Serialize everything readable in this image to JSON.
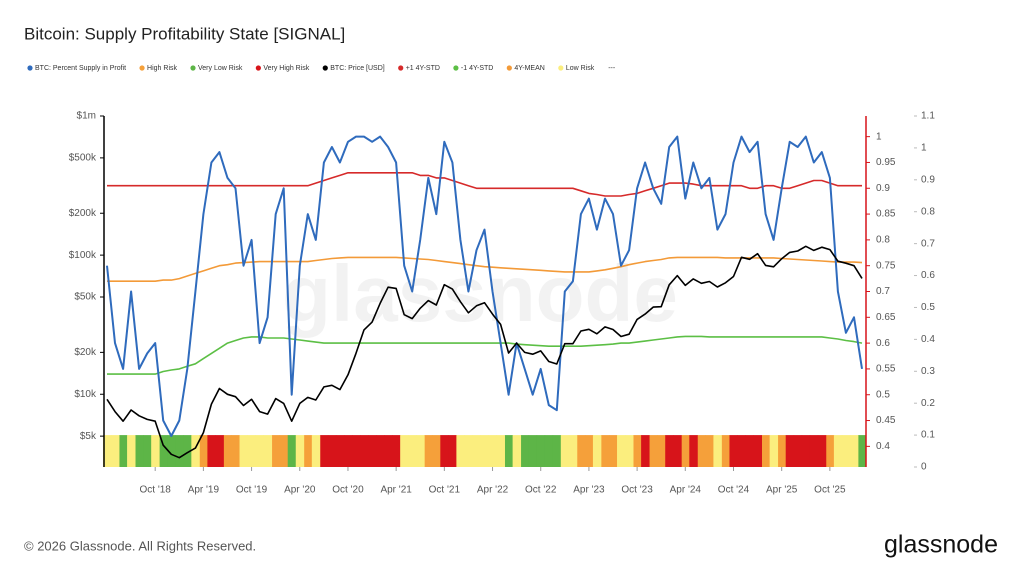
{
  "chart_data": {
    "type": "line",
    "title": "Bitcoin: Supply Profitability State [SIGNAL]",
    "ylog": true,
    "grid": false,
    "legend": "top-left",
    "legend_extra": "---",
    "x": [
      "2018-04",
      "2018-05",
      "2018-06",
      "2018-07",
      "2018-08",
      "2018-09",
      "2018-10",
      "2018-11",
      "2018-12",
      "2019-01",
      "2019-02",
      "2019-03",
      "2019-04",
      "2019-05",
      "2019-06",
      "2019-07",
      "2019-08",
      "2019-09",
      "2019-10",
      "2019-11",
      "2019-12",
      "2020-01",
      "2020-02",
      "2020-03",
      "2020-04",
      "2020-05",
      "2020-06",
      "2020-07",
      "2020-08",
      "2020-09",
      "2020-10",
      "2020-11",
      "2020-12",
      "2021-01",
      "2021-02",
      "2021-03",
      "2021-04",
      "2021-05",
      "2021-06",
      "2021-07",
      "2021-08",
      "2021-09",
      "2021-10",
      "2021-11",
      "2021-12",
      "2022-01",
      "2022-02",
      "2022-03",
      "2022-04",
      "2022-05",
      "2022-06",
      "2022-07",
      "2022-08",
      "2022-09",
      "2022-10",
      "2022-11",
      "2022-12",
      "2023-01",
      "2023-02",
      "2023-03",
      "2023-04",
      "2023-05",
      "2023-06",
      "2023-07",
      "2023-08",
      "2023-09",
      "2023-10",
      "2023-11",
      "2023-12",
      "2024-01",
      "2024-02",
      "2024-03",
      "2024-04",
      "2024-05",
      "2024-06",
      "2024-07",
      "2024-08",
      "2024-09",
      "2024-10",
      "2024-11",
      "2024-12",
      "2025-01",
      "2025-02",
      "2025-03",
      "2025-04",
      "2025-05",
      "2025-06",
      "2025-07",
      "2025-08",
      "2025-09",
      "2025-10",
      "2025-11",
      "2025-12",
      "2026-01",
      "2026-02"
    ],
    "xticks": [
      {
        "value": "2018-10",
        "label": "Oct '18"
      },
      {
        "value": "2019-04",
        "label": "Apr '19"
      },
      {
        "value": "2019-10",
        "label": "Oct '19"
      },
      {
        "value": "2020-04",
        "label": "Apr '20"
      },
      {
        "value": "2020-10",
        "label": "Oct '20"
      },
      {
        "value": "2021-04",
        "label": "Apr '21"
      },
      {
        "value": "2021-10",
        "label": "Oct '21"
      },
      {
        "value": "2022-04",
        "label": "Apr '22"
      },
      {
        "value": "2022-10",
        "label": "Oct '22"
      },
      {
        "value": "2023-04",
        "label": "Apr '23"
      },
      {
        "value": "2023-10",
        "label": "Oct '23"
      },
      {
        "value": "2024-04",
        "label": "Apr '24"
      },
      {
        "value": "2024-10",
        "label": "Oct '24"
      },
      {
        "value": "2025-04",
        "label": "Apr '25"
      },
      {
        "value": "2025-10",
        "label": "Oct '25"
      }
    ],
    "ylim": [
      3000,
      1000000
    ],
    "yticks": [
      {
        "value": 5000,
        "label": "$5k"
      },
      {
        "value": 10000,
        "label": "$10k"
      },
      {
        "value": 20000,
        "label": "$20k"
      },
      {
        "value": 50000,
        "label": "$50k"
      },
      {
        "value": 100000,
        "label": "$100k"
      },
      {
        "value": 200000,
        "label": "$200k"
      },
      {
        "value": 500000,
        "label": "$500k"
      },
      {
        "value": 1000000,
        "label": "$1m"
      }
    ],
    "y2lim": [
      0.36,
      1.04
    ],
    "y2ticks": [
      0.4,
      0.45,
      0.5,
      0.55,
      0.6,
      0.65,
      0.7,
      0.75,
      0.8,
      0.85,
      0.9,
      0.95,
      1
    ],
    "y3lim": [
      0,
      1.1
    ],
    "y3ticks": [
      0,
      0.1,
      0.2,
      0.3,
      0.4,
      0.5,
      0.6,
      0.7,
      0.8,
      0.9,
      1,
      1.1
    ],
    "series": [
      {
        "name": "BTC: Percent Supply in Profit",
        "color": "#2f6bbd",
        "axis": "y2",
        "type": "line",
        "values": [
          0.75,
          0.6,
          0.55,
          0.7,
          0.55,
          0.58,
          0.6,
          0.45,
          0.42,
          0.45,
          0.55,
          0.7,
          0.85,
          0.95,
          0.97,
          0.92,
          0.9,
          0.75,
          0.8,
          0.6,
          0.65,
          0.85,
          0.9,
          0.5,
          0.75,
          0.85,
          0.8,
          0.95,
          0.98,
          0.95,
          0.99,
          1,
          1,
          0.99,
          1,
          0.98,
          0.95,
          0.75,
          0.7,
          0.8,
          0.92,
          0.85,
          0.99,
          0.95,
          0.8,
          0.7,
          0.78,
          0.82,
          0.7,
          0.6,
          0.5,
          0.6,
          0.55,
          0.5,
          0.55,
          0.48,
          0.47,
          0.7,
          0.72,
          0.85,
          0.88,
          0.82,
          0.88,
          0.85,
          0.75,
          0.78,
          0.9,
          0.95,
          0.9,
          0.87,
          0.98,
          1,
          0.88,
          0.95,
          0.9,
          0.92,
          0.82,
          0.85,
          0.95,
          1,
          0.97,
          0.99,
          0.85,
          0.8,
          0.9,
          0.99,
          0.98,
          1,
          0.95,
          0.97,
          0.92,
          0.7,
          0.62,
          0.65,
          0.55
        ]
      },
      {
        "name": "High Risk",
        "color": "#f5a03a",
        "axis": "y3",
        "type": "bar",
        "values": [
          null,
          null,
          null,
          null,
          null,
          null,
          null,
          null,
          null,
          null,
          null,
          null,
          0.1,
          null,
          null,
          0.1,
          0.1,
          null,
          null,
          null,
          null,
          0.1,
          0.1,
          null,
          null,
          0.1,
          null,
          null,
          null,
          null,
          null,
          null,
          null,
          null,
          null,
          null,
          null,
          null,
          null,
          null,
          0.1,
          0.1,
          null,
          null,
          null,
          null,
          null,
          null,
          null,
          null,
          null,
          null,
          null,
          null,
          null,
          null,
          null,
          null,
          null,
          0.1,
          0.1,
          null,
          0.1,
          0.1,
          null,
          null,
          0.1,
          null,
          0.1,
          0.1,
          null,
          null,
          0.1,
          null,
          0.1,
          0.1,
          null,
          0.1,
          null,
          null,
          null,
          null,
          0.1,
          null,
          0.1,
          null,
          null,
          null,
          null,
          null,
          0.1,
          null,
          null,
          null,
          null
        ]
      },
      {
        "name": "Very Low Risk",
        "color": "#5db547",
        "axis": "y3",
        "type": "bar",
        "values": [
          null,
          null,
          0.1,
          null,
          0.1,
          0.1,
          null,
          0.1,
          0.1,
          0.1,
          0.1,
          null,
          null,
          null,
          null,
          null,
          null,
          null,
          null,
          null,
          null,
          null,
          null,
          0.1,
          null,
          null,
          null,
          null,
          null,
          null,
          null,
          null,
          null,
          null,
          null,
          null,
          null,
          null,
          null,
          null,
          null,
          null,
          null,
          null,
          null,
          null,
          null,
          null,
          null,
          null,
          0.1,
          null,
          0.1,
          0.1,
          0.1,
          0.1,
          0.1,
          null,
          null,
          null,
          null,
          null,
          null,
          null,
          null,
          null,
          null,
          null,
          null,
          null,
          null,
          null,
          null,
          null,
          null,
          null,
          null,
          null,
          null,
          null,
          null,
          null,
          null,
          null,
          null,
          null,
          null,
          null,
          null,
          null,
          null,
          null,
          null,
          null,
          0.1
        ]
      },
      {
        "name": "Very High Risk",
        "color": "#d7141a",
        "axis": "y3",
        "type": "bar",
        "values": [
          null,
          null,
          null,
          null,
          null,
          null,
          null,
          null,
          null,
          null,
          null,
          null,
          null,
          0.1,
          0.1,
          null,
          null,
          null,
          null,
          null,
          null,
          null,
          null,
          null,
          null,
          null,
          null,
          0.1,
          0.1,
          0.1,
          0.1,
          0.1,
          0.1,
          0.1,
          0.1,
          0.1,
          0.1,
          null,
          null,
          null,
          null,
          null,
          0.1,
          0.1,
          null,
          null,
          null,
          null,
          null,
          null,
          null,
          null,
          null,
          null,
          null,
          null,
          null,
          null,
          null,
          null,
          null,
          null,
          null,
          null,
          null,
          null,
          null,
          0.1,
          null,
          null,
          0.1,
          0.1,
          null,
          0.1,
          null,
          null,
          null,
          null,
          0.1,
          0.1,
          0.1,
          0.1,
          null,
          null,
          null,
          0.1,
          0.1,
          0.1,
          0.1,
          0.1,
          null,
          null,
          null,
          null,
          null
        ]
      },
      {
        "name": "BTC: Price [USD]",
        "color": "#000000",
        "axis": "y",
        "type": "line",
        "values": [
          9200,
          7500,
          6400,
          7700,
          7000,
          6600,
          6400,
          4300,
          3700,
          3500,
          3800,
          4100,
          5300,
          8500,
          11000,
          10000,
          9600,
          8300,
          9200,
          7500,
          7200,
          9300,
          8600,
          6400,
          8600,
          9500,
          9100,
          11300,
          11600,
          10800,
          13800,
          19700,
          29000,
          33000,
          45000,
          58800,
          57700,
          37300,
          35000,
          41500,
          47100,
          43800,
          61300,
          57000,
          46300,
          38500,
          43200,
          45500,
          37700,
          31800,
          19800,
          23300,
          20000,
          19400,
          20500,
          17200,
          16500,
          23100,
          23100,
          28500,
          29300,
          27200,
          30500,
          29200,
          26000,
          27000,
          34500,
          37700,
          42300,
          42600,
          61200,
          71300,
          60600,
          67500,
          62700,
          64600,
          59000,
          63300,
          70200,
          96400,
          93400,
          102400,
          84400,
          82500,
          94200,
          104600,
          107100,
          115700,
          108200,
          114000,
          109500,
          90400,
          87500,
          84000,
          68000
        ]
      },
      {
        "name": "+1 4Y-STD",
        "color": "#d62a2a",
        "axis": "y2",
        "type": "line",
        "values": [
          0.905,
          0.905,
          0.905,
          0.905,
          0.905,
          0.905,
          0.905,
          0.905,
          0.905,
          0.905,
          0.905,
          0.905,
          0.905,
          0.905,
          0.905,
          0.905,
          0.905,
          0.905,
          0.905,
          0.905,
          0.905,
          0.905,
          0.905,
          0.905,
          0.905,
          0.905,
          0.91,
          0.915,
          0.92,
          0.925,
          0.93,
          0.93,
          0.93,
          0.93,
          0.93,
          0.93,
          0.93,
          0.93,
          0.93,
          0.925,
          0.925,
          0.92,
          0.92,
          0.915,
          0.91,
          0.905,
          0.9,
          0.9,
          0.9,
          0.9,
          0.9,
          0.9,
          0.9,
          0.9,
          0.9,
          0.9,
          0.9,
          0.9,
          0.9,
          0.895,
          0.89,
          0.888,
          0.885,
          0.885,
          0.885,
          0.888,
          0.89,
          0.895,
          0.9,
          0.905,
          0.91,
          0.91,
          0.91,
          0.908,
          0.905,
          0.905,
          0.905,
          0.905,
          0.905,
          0.905,
          0.9,
          0.9,
          0.905,
          0.905,
          0.9,
          0.9,
          0.905,
          0.91,
          0.915,
          0.915,
          0.91,
          0.905,
          0.905,
          0.905,
          0.905
        ]
      },
      {
        "name": "-1 4Y-STD",
        "color": "#5cbf45",
        "axis": "y2",
        "type": "line",
        "values": [
          0.54,
          0.54,
          0.54,
          0.54,
          0.54,
          0.54,
          0.54,
          0.545,
          0.548,
          0.55,
          0.555,
          0.56,
          0.57,
          0.58,
          0.59,
          0.6,
          0.605,
          0.61,
          0.612,
          0.612,
          0.61,
          0.61,
          0.61,
          0.608,
          0.606,
          0.604,
          0.602,
          0.6,
          0.6,
          0.6,
          0.6,
          0.6,
          0.6,
          0.6,
          0.6,
          0.6,
          0.6,
          0.6,
          0.6,
          0.6,
          0.6,
          0.6,
          0.6,
          0.6,
          0.6,
          0.6,
          0.6,
          0.6,
          0.6,
          0.6,
          0.6,
          0.598,
          0.597,
          0.596,
          0.595,
          0.594,
          0.594,
          0.594,
          0.594,
          0.594,
          0.595,
          0.596,
          0.597,
          0.598,
          0.6,
          0.6,
          0.602,
          0.604,
          0.606,
          0.608,
          0.61,
          0.612,
          0.613,
          0.613,
          0.613,
          0.612,
          0.612,
          0.612,
          0.612,
          0.612,
          0.612,
          0.612,
          0.612,
          0.612,
          0.612,
          0.612,
          0.612,
          0.612,
          0.612,
          0.612,
          0.61,
          0.608,
          0.605,
          0.603,
          0.6
        ]
      },
      {
        "name": "4Y-MEAN",
        "color": "#f39a38",
        "axis": "y2",
        "type": "line",
        "values": [
          0.72,
          0.72,
          0.72,
          0.72,
          0.72,
          0.72,
          0.72,
          0.722,
          0.722,
          0.725,
          0.73,
          0.735,
          0.74,
          0.745,
          0.75,
          0.752,
          0.755,
          0.756,
          0.757,
          0.758,
          0.758,
          0.758,
          0.758,
          0.758,
          0.758,
          0.758,
          0.76,
          0.762,
          0.764,
          0.765,
          0.766,
          0.766,
          0.766,
          0.766,
          0.766,
          0.766,
          0.766,
          0.765,
          0.764,
          0.763,
          0.762,
          0.76,
          0.758,
          0.756,
          0.754,
          0.752,
          0.75,
          0.748,
          0.747,
          0.746,
          0.745,
          0.744,
          0.743,
          0.742,
          0.741,
          0.74,
          0.739,
          0.738,
          0.738,
          0.738,
          0.738,
          0.74,
          0.742,
          0.745,
          0.748,
          0.752,
          0.755,
          0.758,
          0.76,
          0.762,
          0.765,
          0.766,
          0.766,
          0.766,
          0.766,
          0.766,
          0.766,
          0.765,
          0.765,
          0.765,
          0.765,
          0.765,
          0.765,
          0.765,
          0.764,
          0.763,
          0.762,
          0.761,
          0.76,
          0.759,
          0.758,
          0.757,
          0.757,
          0.757,
          0.756
        ]
      },
      {
        "name": "Low Risk",
        "color": "#fbee7e",
        "axis": "y3",
        "type": "bar",
        "values": [
          0.1,
          0.1,
          null,
          0.1,
          null,
          null,
          0.1,
          null,
          null,
          null,
          null,
          0.1,
          null,
          null,
          null,
          null,
          null,
          0.1,
          0.1,
          0.1,
          0.1,
          null,
          null,
          null,
          0.1,
          null,
          0.1,
          null,
          null,
          null,
          null,
          null,
          null,
          null,
          null,
          null,
          null,
          0.1,
          0.1,
          0.1,
          null,
          null,
          null,
          null,
          0.1,
          0.1,
          0.1,
          0.1,
          0.1,
          0.1,
          null,
          0.1,
          null,
          null,
          null,
          null,
          null,
          0.1,
          0.1,
          null,
          null,
          0.1,
          null,
          null,
          0.1,
          0.1,
          null,
          null,
          null,
          null,
          null,
          null,
          null,
          null,
          null,
          null,
          0.1,
          null,
          null,
          null,
          null,
          null,
          null,
          0.1,
          null,
          null,
          null,
          null,
          null,
          null,
          null,
          0.1,
          0.1,
          0.1,
          null
        ]
      }
    ]
  },
  "watermark": "glassnode",
  "footer": {
    "copyright": "© 2026 Glassnode. All Rights Reserved.",
    "brand": "glassnode"
  }
}
